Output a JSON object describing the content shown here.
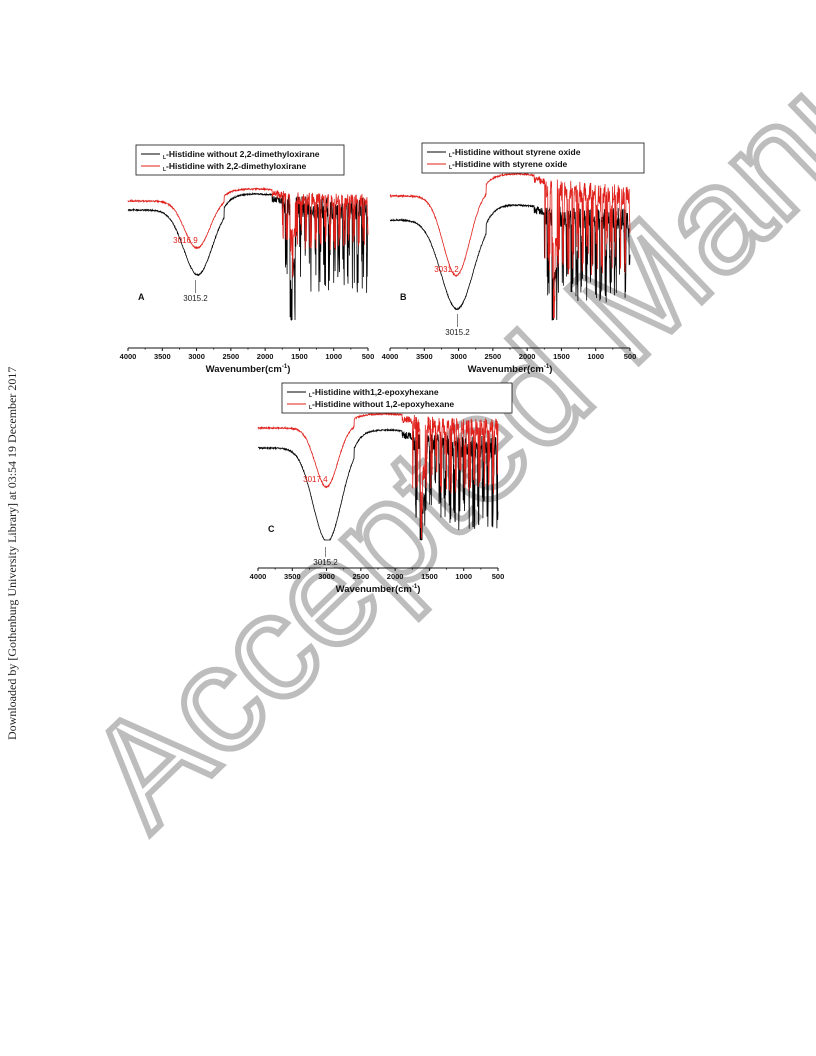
{
  "side_note": "Downloaded by [Gothenburg University Library] at 03:54 19 December 2017",
  "watermark": "Accepted Manuscript",
  "colors": {
    "black_series": "#000000",
    "red_series": "#e0201b",
    "watermark": "#bdbdbd"
  },
  "chart_data": [
    {
      "type": "line",
      "panel_label": "A",
      "xlabel": "Wavenumber(cm",
      "xlabel_sup": "-1",
      "xlabel_close": ")",
      "x_reversed": true,
      "xlim": [
        4000,
        500
      ],
      "xticks": [
        4000,
        3500,
        3000,
        2500,
        2000,
        1500,
        1000,
        500
      ],
      "grid": false,
      "legend_position": "top-right",
      "series": [
        {
          "name": "-Histidine without 2,2-dimethyloxirane",
          "prefix": "L",
          "color": "#000000"
        },
        {
          "name": "-Histidine with 2,2-dimethyloxirane",
          "prefix": "L",
          "color": "#e0201b"
        }
      ],
      "annotations": [
        {
          "text": "3016.9",
          "x": 3016.9,
          "series": 1
        },
        {
          "text": "3015.2",
          "x": 3015.2,
          "series": 0
        }
      ]
    },
    {
      "type": "line",
      "panel_label": "B",
      "xlabel": "Wavenumber(cm",
      "xlabel_sup": "-1",
      "xlabel_close": ")",
      "x_reversed": true,
      "xlim": [
        4000,
        500
      ],
      "xticks": [
        4000,
        3500,
        3000,
        2500,
        2000,
        1500,
        1000,
        500
      ],
      "grid": false,
      "legend_position": "top-right",
      "series": [
        {
          "name": "-Histidine without styrene oxide",
          "prefix": "L",
          "color": "#000000"
        },
        {
          "name": "-Histidine with styrene oxide",
          "prefix": "L",
          "color": "#e0201b"
        }
      ],
      "annotations": [
        {
          "text": "3031.2",
          "x": 3031.2,
          "series": 1
        },
        {
          "text": "3015.2",
          "x": 3015.2,
          "series": 0
        }
      ]
    },
    {
      "type": "line",
      "panel_label": "C",
      "xlabel": "Wavenumber(cm",
      "xlabel_sup": "-1",
      "xlabel_close": ")",
      "x_reversed": true,
      "xlim": [
        4000,
        500
      ],
      "xticks": [
        4000,
        3500,
        3000,
        2500,
        2000,
        1500,
        1000,
        500
      ],
      "grid": false,
      "legend_position": "top-right",
      "series": [
        {
          "name": "-Histidine with1,2-epoxyhexane",
          "prefix": "L",
          "color": "#000000"
        },
        {
          "name": "-Histidine without 1,2-epoxyhexane",
          "prefix": "L",
          "color": "#e0201b"
        }
      ],
      "annotations": [
        {
          "text": "3017.4",
          "x": 3017.4,
          "series": 1
        },
        {
          "text": "3015.2",
          "x": 3015.2,
          "series": 0
        }
      ]
    }
  ]
}
